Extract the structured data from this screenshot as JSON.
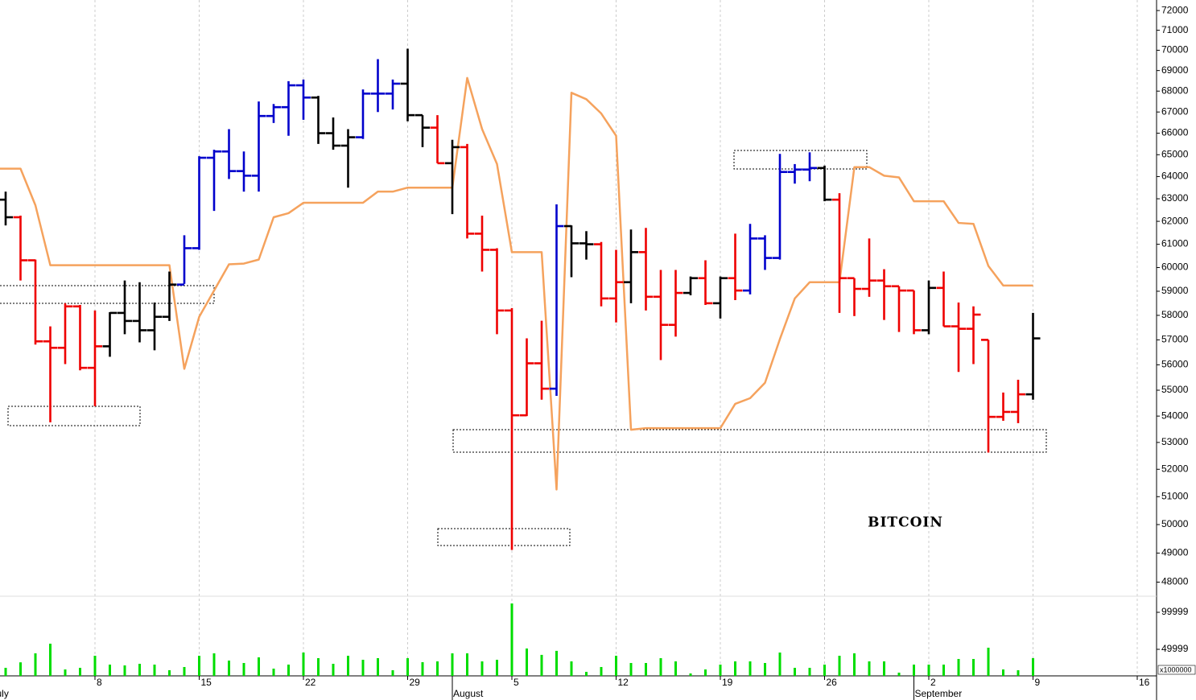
{
  "chart_data": [
    {
      "type": "ohlc",
      "annotation": "BITCOIN",
      "log_scale": true,
      "grid": "x",
      "categories": [
        "July",
        null,
        null,
        null,
        null,
        null,
        null,
        "8",
        null,
        null,
        null,
        null,
        null,
        null,
        "15",
        null,
        null,
        null,
        null,
        null,
        null,
        "22",
        null,
        null,
        null,
        null,
        null,
        null,
        "29",
        null,
        null,
        "August",
        null,
        null,
        null,
        "5",
        null,
        null,
        null,
        null,
        null,
        null,
        "12",
        null,
        null,
        null,
        null,
        null,
        null,
        "19",
        null,
        null,
        null,
        null,
        null,
        null,
        "26",
        null,
        null,
        null,
        null,
        null,
        "September",
        "2",
        null,
        null,
        null,
        null,
        null,
        null,
        "9",
        null,
        null,
        null,
        null,
        null,
        null,
        "16"
      ],
      "open": [
        null,
        62960,
        62180,
        60310,
        56940,
        56680,
        58370,
        55880,
        56740,
        58100,
        57770,
        57390,
        57940,
        59280,
        60830,
        64860,
        65150,
        64250,
        64040,
        66810,
        67230,
        68280,
        67690,
        66000,
        65420,
        65810,
        67880,
        67880,
        68360,
        66850,
        66260,
        64610,
        65350,
        61460,
        60760,
        58200,
        54030,
        56060,
        55060,
        61790,
        61040,
        61000,
        58700,
        59380,
        60660,
        58770,
        57610,
        58930,
        59550,
        58500,
        59550,
        59030,
        61250,
        60410,
        64210,
        64320,
        64390,
        62960,
        59550,
        59100,
        59450,
        59210,
        59030,
        57390,
        59140,
        57550,
        57450,
        57000,
        53970,
        54160,
        54840,
        null,
        null,
        null,
        null,
        null,
        null,
        null
      ],
      "high": [
        null,
        63320,
        62250,
        60340,
        57550,
        58500,
        58430,
        58200,
        58130,
        59450,
        59380,
        58530,
        59830,
        61390,
        64930,
        65230,
        66190,
        65150,
        67500,
        67380,
        68480,
        68560,
        67770,
        66740,
        66190,
        68080,
        69560,
        68560,
        70080,
        66850,
        66850,
        65690,
        65500,
        62250,
        60830,
        58300,
        57060,
        57780,
        62750,
        61820,
        61570,
        61100,
        60760,
        61640,
        61710,
        59900,
        59900,
        59620,
        60310,
        59620,
        61460,
        61890,
        61390,
        65040,
        64570,
        65110,
        64500,
        63250,
        59550,
        61250,
        59930,
        59210,
        59030,
        59450,
        59830,
        58530,
        58370,
        57000,
        54910,
        55410,
        58100,
        null,
        null,
        null,
        null,
        null,
        null,
        null
      ],
      "low": [
        null,
        61820,
        59450,
        56810,
        53760,
        56030,
        55780,
        54380,
        56320,
        57230,
        56900,
        56580,
        57770,
        59310,
        60760,
        62460,
        63890,
        63320,
        63320,
        66480,
        65880,
        66630,
        65500,
        65230,
        63500,
        65730,
        67000,
        67120,
        66560,
        65350,
        64610,
        62320,
        61250,
        59830,
        57230,
        49110,
        54000,
        54630,
        54780,
        59590,
        60340,
        58370,
        57710,
        58500,
        58200,
        56190,
        57130,
        58830,
        58430,
        57870,
        58630,
        58870,
        59900,
        60340,
        63680,
        63790,
        62890,
        58100,
        57970,
        58770,
        57810,
        57320,
        57230,
        57230,
        57550,
        55720,
        56030,
        52620,
        53820,
        53730,
        54630,
        null,
        null,
        null,
        null,
        null,
        null,
        null
      ],
      "close": [
        null,
        62180,
        60310,
        56940,
        56680,
        58370,
        55880,
        56740,
        58100,
        57770,
        57390,
        57940,
        59280,
        60830,
        64860,
        65150,
        64250,
        64040,
        66810,
        67230,
        68280,
        67690,
        66000,
        65420,
        65810,
        67880,
        67880,
        68360,
        66850,
        66260,
        64610,
        65350,
        61460,
        60760,
        58200,
        54030,
        56060,
        55060,
        61790,
        61040,
        61000,
        58700,
        59380,
        60660,
        58770,
        57610,
        58930,
        59550,
        58500,
        59550,
        59030,
        61250,
        60410,
        64210,
        64320,
        64390,
        62960,
        59550,
        59100,
        59450,
        59210,
        59030,
        57390,
        59140,
        57550,
        57450,
        58030,
        53970,
        54160,
        54840,
        57060,
        null,
        null,
        null,
        null,
        null,
        null,
        null
      ],
      "colors": [
        null,
        "#000",
        "#e00",
        "#e00",
        "#e00",
        "#e00",
        "#e00",
        "#e00",
        "#000",
        "#000",
        "#000",
        "#000",
        "#000",
        "#00c",
        "#00c",
        "#00c",
        "#00c",
        "#00c",
        "#00c",
        "#00c",
        "#00c",
        "#00c",
        "#000",
        "#000",
        "#000",
        "#00c",
        "#00c",
        "#00c",
        "#000",
        "#000",
        "#e00",
        "#000",
        "#e00",
        "#e00",
        "#e00",
        "#e00",
        "#e00",
        "#e00",
        "#00c",
        "#000",
        "#000",
        "#e00",
        "#e00",
        "#000",
        "#e00",
        "#e00",
        "#e00",
        "#000",
        "#e00",
        "#000",
        "#e00",
        "#00c",
        "#00c",
        "#00c",
        "#00c",
        "#00c",
        "#000",
        "#e00",
        "#e00",
        "#e00",
        "#e00",
        "#e00",
        "#e00",
        "#000",
        "#e00",
        "#e00",
        "#e00",
        "#e00",
        "#e00",
        "#e00",
        "#000",
        null,
        null,
        null,
        null,
        null,
        null,
        null
      ],
      "line": {
        "color": "#f5a25d",
        "values": [
          64360,
          64360,
          64360,
          62710,
          60100,
          60100,
          60100,
          60100,
          60100,
          60100,
          60100,
          60100,
          60100,
          55840,
          57940,
          59030,
          60140,
          60170,
          60340,
          62180,
          62360,
          62820,
          62820,
          62820,
          62820,
          62820,
          63320,
          63320,
          63500,
          63500,
          63500,
          63500,
          68640,
          66190,
          64570,
          60660,
          60660,
          60660,
          51260,
          67920,
          67610,
          66930,
          65880,
          53480,
          53540,
          53540,
          53540,
          53540,
          53540,
          53540,
          54470,
          54690,
          55290,
          57030,
          58700,
          59380,
          59380,
          59380,
          64430,
          64430,
          64040,
          63960,
          62890,
          62890,
          62890,
          61930,
          61890,
          60070,
          59240,
          59240,
          59240,
          null,
          null,
          null,
          null,
          null,
          null,
          null
        ]
      },
      "ylim": [
        47550,
        72540
      ],
      "yticks": [
        72000,
        71000,
        70000,
        69000,
        68000,
        67000,
        66000,
        65000,
        64000,
        63000,
        62000,
        61000,
        60000,
        59000,
        58000,
        57000,
        56000,
        55000,
        54000,
        53000,
        52000,
        51000,
        50000,
        49000,
        48000
      ]
    },
    {
      "type": "bar",
      "color": "#00dd00",
      "unit_label": "x1000000",
      "values": [
        null,
        25000,
        32400,
        44560,
        57600,
        22800,
        25000,
        41300,
        29350,
        28260,
        30430,
        29350,
        21740,
        26090,
        41300,
        44560,
        34780,
        31520,
        39130,
        23910,
        29350,
        45650,
        38040,
        30430,
        41300,
        35870,
        38040,
        21740,
        38040,
        32610,
        33700,
        44560,
        44560,
        33700,
        35870,
        111950,
        51090,
        42480,
        47910,
        33700,
        19560,
        26090,
        41300,
        31520,
        31520,
        38040,
        33700,
        17390,
        22800,
        29350,
        33700,
        33700,
        31520,
        45650,
        25000,
        25000,
        29350,
        41300,
        44560,
        33700,
        33700,
        18480,
        29350,
        29350,
        29350,
        36960,
        36960,
        52170,
        22800,
        21740,
        38040,
        null,
        null,
        null,
        null,
        null,
        null,
        null
      ],
      "ylim": [
        14130,
        120650
      ],
      "yticks": [
        49999,
        99999
      ]
    }
  ]
}
